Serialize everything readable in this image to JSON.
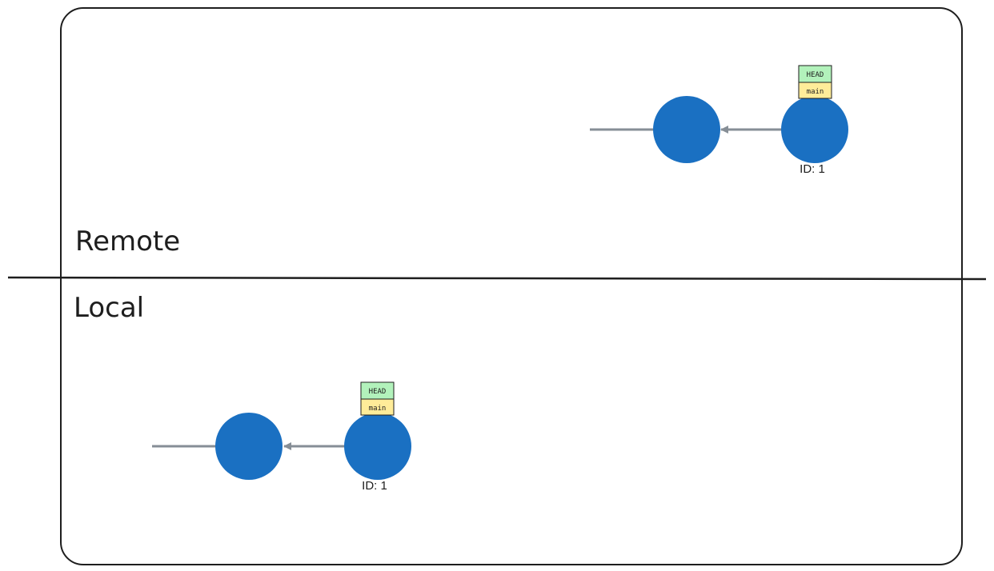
{
  "sections": {
    "remote": {
      "label": "Remote",
      "head_commit_id": "ID: 1",
      "refs": [
        "HEAD",
        "main"
      ]
    },
    "local": {
      "label": "Local",
      "head_commit_id": "ID: 1",
      "refs": [
        "HEAD",
        "main"
      ]
    }
  },
  "colors": {
    "commit_fill": "#1a70c2",
    "edge": "#868e96",
    "frame": "#1e1e1e",
    "head_ref_fill": "#b2f2bb",
    "branch_ref_fill": "#ffec99"
  }
}
